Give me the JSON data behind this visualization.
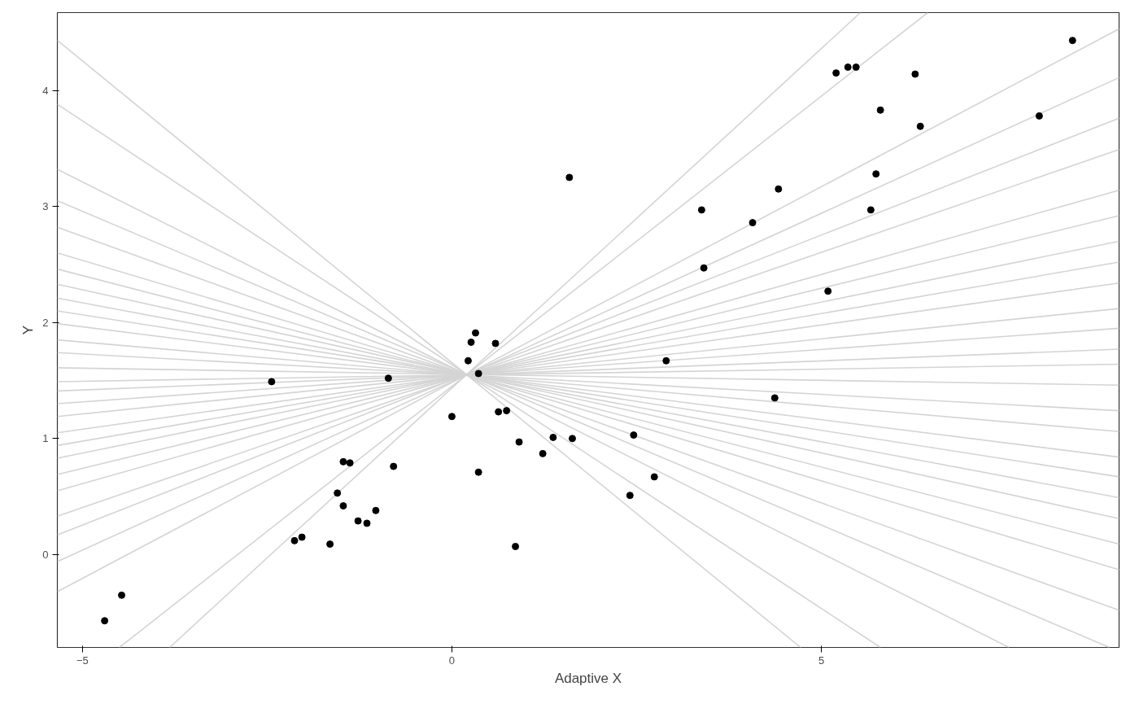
{
  "chart_data": {
    "type": "line",
    "xlabel": "Adaptive X",
    "ylabel": "Y",
    "xlim": [
      -5.34,
      9.03
    ],
    "ylim": [
      -0.8,
      4.67
    ],
    "xticks": [
      -5,
      0,
      5
    ],
    "yticks": [
      0,
      1,
      2,
      3,
      4
    ],
    "grid": false,
    "series": [
      {
        "color": "#d4d4d4",
        "x": [
          -3.82,
          5.53
        ],
        "values": [
          -0.8,
          4.67
        ]
      },
      {
        "color": "#d4d4d4",
        "x": [
          -4.5,
          6.44
        ],
        "values": [
          -0.8,
          4.67
        ]
      },
      {
        "color": "#d4d4d4",
        "x": [
          -5.34,
          9.03
        ],
        "values": [
          -0.32,
          4.53
        ]
      },
      {
        "color": "#d4d4d4",
        "x": [
          -5.34,
          9.03
        ],
        "values": [
          -0.06,
          4.11
        ]
      },
      {
        "color": "#d4d4d4",
        "x": [
          -5.34,
          9.03
        ],
        "values": [
          0.17,
          3.76
        ]
      },
      {
        "color": "#d4d4d4",
        "x": [
          -5.34,
          9.03
        ],
        "values": [
          0.33,
          3.49
        ]
      },
      {
        "color": "#d4d4d4",
        "x": [
          -5.34,
          9.03
        ],
        "values": [
          0.55,
          3.14
        ]
      },
      {
        "color": "#d4d4d4",
        "x": [
          -5.34,
          9.03
        ],
        "values": [
          0.69,
          2.92
        ]
      },
      {
        "color": "#d4d4d4",
        "x": [
          -5.34,
          9.03
        ],
        "values": [
          0.83,
          2.7
        ]
      },
      {
        "color": "#d4d4d4",
        "x": [
          -5.34,
          9.03
        ],
        "values": [
          0.94,
          2.52
        ]
      },
      {
        "color": "#d4d4d4",
        "x": [
          -5.34,
          9.03
        ],
        "values": [
          1.05,
          2.34
        ]
      },
      {
        "color": "#d4d4d4",
        "x": [
          -5.34,
          9.03
        ],
        "values": [
          1.19,
          2.12
        ]
      },
      {
        "color": "#d4d4d4",
        "x": [
          -5.34,
          9.03
        ],
        "values": [
          1.3,
          1.95
        ]
      },
      {
        "color": "#d4d4d4",
        "x": [
          -5.34,
          9.03
        ],
        "values": [
          1.41,
          1.77
        ]
      },
      {
        "color": "#d4d4d4",
        "x": [
          -5.34,
          9.03
        ],
        "values": [
          1.49,
          1.64
        ]
      },
      {
        "color": "#d4d4d4",
        "x": [
          -5.34,
          9.03
        ],
        "values": [
          1.61,
          1.46
        ]
      },
      {
        "color": "#d4d4d4",
        "x": [
          -5.34,
          9.03
        ],
        "values": [
          1.74,
          1.24
        ]
      },
      {
        "color": "#d4d4d4",
        "x": [
          -5.34,
          9.03
        ],
        "values": [
          1.85,
          1.06
        ]
      },
      {
        "color": "#d4d4d4",
        "x": [
          -5.34,
          9.03
        ],
        "values": [
          1.99,
          0.84
        ]
      },
      {
        "color": "#d4d4d4",
        "x": [
          -5.34,
          9.03
        ],
        "values": [
          2.1,
          0.67
        ]
      },
      {
        "color": "#d4d4d4",
        "x": [
          -5.34,
          9.03
        ],
        "values": [
          2.21,
          0.49
        ]
      },
      {
        "color": "#d4d4d4",
        "x": [
          -5.34,
          9.03
        ],
        "values": [
          2.33,
          0.31
        ]
      },
      {
        "color": "#d4d4d4",
        "x": [
          -5.34,
          9.03
        ],
        "values": [
          2.46,
          0.09
        ]
      },
      {
        "color": "#d4d4d4",
        "x": [
          -5.34,
          9.03
        ],
        "values": [
          2.6,
          -0.13
        ]
      },
      {
        "color": "#d4d4d4",
        "x": [
          -5.34,
          9.03
        ],
        "values": [
          2.82,
          -0.48
        ]
      },
      {
        "color": "#d4d4d4",
        "x": [
          -5.34,
          8.9
        ],
        "values": [
          3.05,
          -0.8
        ]
      },
      {
        "color": "#d4d4d4",
        "x": [
          -5.34,
          7.54
        ],
        "values": [
          3.32,
          -0.8
        ]
      },
      {
        "color": "#d4d4d4",
        "x": [
          -5.34,
          5.8
        ],
        "values": [
          3.88,
          -0.8
        ]
      },
      {
        "color": "#d4d4d4",
        "x": [
          -5.34,
          4.72
        ],
        "values": [
          4.43,
          -0.8
        ]
      },
      {
        "type": "scatter",
        "marker": "circle",
        "color": "#000000",
        "x": [
          -4.7,
          -4.47,
          -2.44,
          -2.13,
          -2.03,
          -1.65,
          -1.55,
          -1.47,
          -1.38,
          -1.47,
          -1.27,
          -1.15,
          -1.03,
          -0.86,
          -0.79,
          0.0,
          0.22,
          0.26,
          0.32,
          0.36,
          0.36,
          0.59,
          0.63,
          0.74,
          0.86,
          0.91,
          1.23,
          1.37,
          1.59,
          1.63,
          2.41,
          2.46,
          2.74,
          2.9,
          3.38,
          3.41,
          4.07,
          4.37,
          4.42,
          5.09,
          5.2,
          5.36,
          5.47,
          5.67,
          5.74,
          5.8,
          6.27,
          6.34,
          7.95,
          8.4
        ],
        "values": [
          -0.57,
          -0.35,
          1.49,
          0.12,
          0.15,
          0.09,
          0.53,
          0.8,
          0.79,
          0.42,
          0.29,
          0.27,
          0.38,
          1.52,
          0.76,
          1.19,
          1.67,
          1.83,
          1.91,
          1.56,
          0.71,
          1.82,
          1.23,
          1.24,
          0.07,
          0.97,
          0.87,
          1.01,
          3.25,
          1.0,
          0.51,
          1.03,
          0.67,
          1.67,
          2.97,
          2.47,
          2.86,
          1.35,
          3.15,
          2.27,
          4.15,
          4.2,
          4.2,
          2.97,
          3.28,
          3.83,
          4.14,
          3.69,
          3.78,
          4.43
        ]
      }
    ]
  }
}
